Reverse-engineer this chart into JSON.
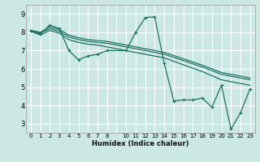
{
  "title": "",
  "xlabel": "Humidex (Indice chaleur)",
  "xlim": [
    -0.5,
    23.5
  ],
  "ylim": [
    2.5,
    9.5
  ],
  "yticks": [
    3,
    4,
    5,
    6,
    7,
    8,
    9
  ],
  "bg_color": "#cce8e5",
  "grid_color": "#ffffff",
  "line_color": "#1a7060",
  "line1": {
    "x": [
      0,
      1,
      2,
      3,
      4,
      5,
      6,
      7,
      8,
      10,
      11,
      12,
      13,
      14,
      15,
      16,
      17,
      18,
      19,
      20,
      21,
      22,
      23
    ],
    "y": [
      8.1,
      7.9,
      8.4,
      8.2,
      7.0,
      6.5,
      6.7,
      6.8,
      7.0,
      7.0,
      8.0,
      8.8,
      8.85,
      6.3,
      4.25,
      4.3,
      4.3,
      4.4,
      3.9,
      5.1,
      2.7,
      3.6,
      4.9
    ]
  },
  "line2": {
    "x": [
      0,
      1,
      2,
      3,
      4,
      5,
      6,
      7,
      8,
      10,
      11,
      12,
      13,
      14,
      18,
      20,
      23
    ],
    "y": [
      8.1,
      8.0,
      8.3,
      8.15,
      7.85,
      7.7,
      7.6,
      7.55,
      7.5,
      7.3,
      7.2,
      7.1,
      7.0,
      6.9,
      6.2,
      5.8,
      5.5
    ]
  },
  "line3": {
    "x": [
      0,
      1,
      2,
      3,
      4,
      5,
      6,
      7,
      8,
      10,
      11,
      12,
      13,
      14,
      18,
      20,
      23
    ],
    "y": [
      8.1,
      7.95,
      8.2,
      8.05,
      7.75,
      7.6,
      7.5,
      7.45,
      7.4,
      7.2,
      7.1,
      7.0,
      6.9,
      6.8,
      6.1,
      5.7,
      5.4
    ]
  },
  "line4": {
    "x": [
      0,
      1,
      2,
      3,
      4,
      5,
      6,
      7,
      8,
      10,
      11,
      12,
      13,
      14,
      18,
      20,
      23
    ],
    "y": [
      8.05,
      7.85,
      8.1,
      7.95,
      7.6,
      7.45,
      7.35,
      7.3,
      7.2,
      7.0,
      6.9,
      6.8,
      6.7,
      6.6,
      5.85,
      5.4,
      5.1
    ]
  }
}
